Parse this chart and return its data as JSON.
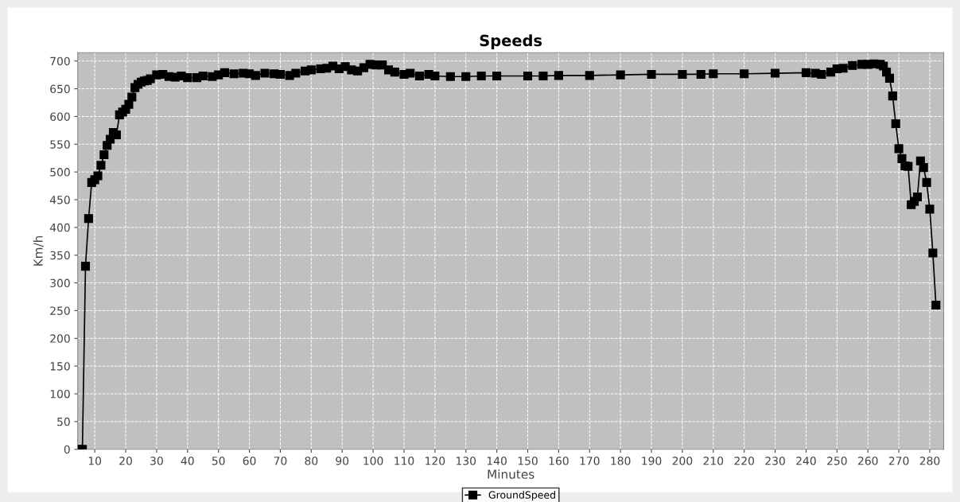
{
  "chart_data": {
    "type": "line",
    "title": "Speeds",
    "xlabel": "Minutes",
    "ylabel": "Km/h",
    "xlim": [
      4.5,
      284.5
    ],
    "ylim": [
      0,
      715
    ],
    "xticks": [
      10,
      20,
      30,
      40,
      50,
      60,
      70,
      80,
      90,
      100,
      110,
      120,
      130,
      140,
      150,
      160,
      170,
      180,
      190,
      200,
      210,
      220,
      230,
      240,
      250,
      260,
      270,
      280
    ],
    "yticks": [
      0,
      50,
      100,
      150,
      200,
      250,
      300,
      350,
      400,
      450,
      500,
      550,
      600,
      650,
      700
    ],
    "grid": true,
    "legend": "bottom",
    "marker": "square",
    "line_style": "solid",
    "series": [
      {
        "name": "GroundSpeed",
        "color": "#000000",
        "x": [
          5,
          6,
          7,
          8,
          9,
          10,
          11,
          12,
          13,
          14,
          15,
          16,
          17,
          18,
          19,
          20,
          21,
          22,
          23,
          24,
          25,
          26,
          27,
          28,
          30,
          32,
          34,
          36,
          38,
          40,
          43,
          45,
          48,
          50,
          52,
          55,
          58,
          60,
          62,
          65,
          68,
          70,
          73,
          75,
          78,
          80,
          83,
          85,
          87,
          89,
          91,
          93,
          95,
          97,
          99,
          101,
          103,
          105,
          107,
          110,
          112,
          115,
          118,
          120,
          125,
          130,
          135,
          140,
          150,
          155,
          160,
          170,
          180,
          190,
          200,
          206,
          210,
          220,
          230,
          240,
          243,
          245,
          248,
          250,
          252,
          255,
          258,
          260,
          262,
          264,
          265,
          266,
          267,
          268,
          269,
          270,
          271,
          272,
          273,
          274,
          275,
          276,
          277,
          278,
          279,
          280,
          281,
          282
        ],
        "values": [
          0,
          0,
          330,
          416,
          481,
          486,
          493,
          512,
          531,
          548,
          559,
          571,
          567,
          603,
          608,
          613,
          622,
          635,
          652,
          658,
          662,
          664,
          665,
          668,
          675,
          676,
          672,
          671,
          673,
          670,
          670,
          673,
          672,
          675,
          679,
          677,
          678,
          677,
          674,
          678,
          677,
          676,
          674,
          678,
          682,
          684,
          686,
          687,
          691,
          686,
          690,
          684,
          682,
          688,
          694,
          693,
          693,
          684,
          680,
          676,
          678,
          673,
          676,
          673,
          672,
          672,
          673,
          673,
          673,
          673,
          674,
          674,
          675,
          676,
          676,
          676,
          677,
          677,
          678,
          679,
          678,
          676,
          680,
          686,
          687,
          692,
          694,
          694,
          695,
          694,
          691,
          680,
          669,
          637,
          587,
          542,
          524,
          511,
          510,
          441,
          447,
          455,
          520,
          508,
          481,
          433,
          354,
          260
        ]
      }
    ]
  }
}
